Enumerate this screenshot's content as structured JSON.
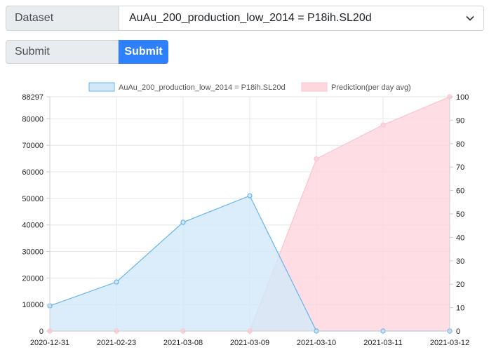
{
  "form": {
    "dataset_label": "Dataset",
    "dataset_value": "AuAu_200_production_low_2014 = P18ih.SL20d",
    "submit_label": "Submit",
    "submit_button": "Submit"
  },
  "chart_data": {
    "type": "area",
    "categories": [
      "2020-12-31",
      "2021-02-23",
      "2021-03-08",
      "2021-03-09",
      "2021-03-10",
      "2021-03-11",
      "2021-03-12"
    ],
    "series": [
      {
        "name": "AuAu_200_production_low_2014 = P18ih.SL20d",
        "axis": "left",
        "values": [
          9500,
          18500,
          41000,
          51000,
          0,
          0,
          0
        ],
        "fill": "#d2e8f9",
        "stroke": "#64b5f0"
      },
      {
        "name": "Prediction(per day avg)",
        "axis": "right",
        "values": [
          0,
          0,
          0,
          0,
          73.5,
          88,
          100
        ],
        "fill": "#fed6dd",
        "stroke": "#fbc4ce"
      }
    ],
    "y_left": {
      "min": 0,
      "max": 88297,
      "ticks": [
        0,
        10000,
        20000,
        30000,
        40000,
        50000,
        60000,
        70000,
        80000,
        88297
      ]
    },
    "y_right": {
      "min": 0,
      "max": 100,
      "ticks": [
        0,
        10,
        20,
        30,
        40,
        50,
        60,
        70,
        80,
        90,
        100
      ]
    },
    "grid": true,
    "legend_position": "top"
  }
}
